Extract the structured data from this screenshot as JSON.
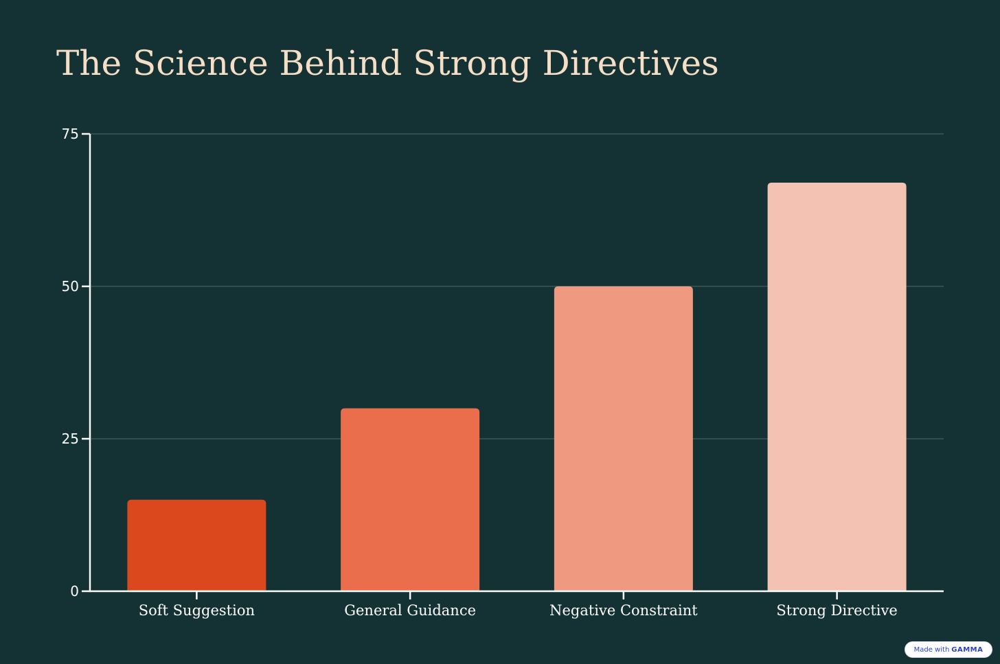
{
  "title": "The Science Behind Strong Directives",
  "badge": {
    "prefix": "Made with",
    "brand": "GAMMA"
  },
  "chart_data": {
    "type": "bar",
    "title": "The Science Behind Strong Directives",
    "xlabel": "",
    "ylabel": "",
    "categories": [
      "Soft Suggestion",
      "General Guidance",
      "Negative Constraint",
      "Strong Directive"
    ],
    "values": [
      15,
      30,
      50,
      67
    ],
    "ylim": [
      0,
      75
    ],
    "yticks": [
      0,
      25,
      50,
      75
    ],
    "grid": true,
    "legend": "none",
    "colors": [
      "#db481e",
      "#ea6e4c",
      "#ef9a80",
      "#f3c2b3"
    ],
    "background": "#143233",
    "axis_color": "#ffffff",
    "grid_color": "#4f6868",
    "title_color": "#f5dec6"
  }
}
